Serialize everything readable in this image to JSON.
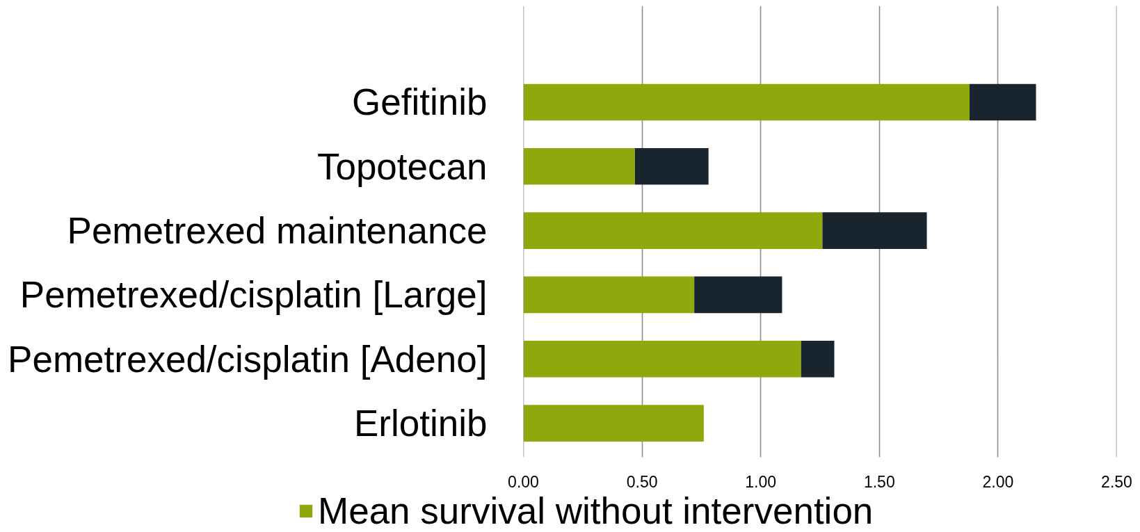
{
  "chart_data": {
    "type": "bar",
    "orientation": "horizontal",
    "stacked": true,
    "categories": [
      "Gefitinib",
      "Topotecan",
      "Pemetrexed maintenance",
      "Pemetrexed/cisplatin [Large]",
      "Pemetrexed/cisplatin [Adeno]",
      "Erlotinib"
    ],
    "series": [
      {
        "name": "Mean survival without intervention",
        "color": "#8fa80b",
        "values": [
          1.88,
          0.47,
          1.26,
          0.72,
          1.17,
          0.76
        ]
      },
      {
        "color": "#18252f",
        "values": [
          0.28,
          0.31,
          0.44,
          0.37,
          0.14,
          null
        ]
      }
    ],
    "xlim": [
      0,
      2.5
    ],
    "xticks": [
      {
        "value": 0,
        "label": "0.00"
      },
      {
        "value": 0.5,
        "label": "0.50"
      },
      {
        "value": 1,
        "label": "1.00"
      },
      {
        "value": 1.5,
        "label": "1.50"
      },
      {
        "value": 2,
        "label": "2.00"
      },
      {
        "value": 2.5,
        "label": "2.50"
      }
    ],
    "grid": "x",
    "legend": "bottom"
  }
}
